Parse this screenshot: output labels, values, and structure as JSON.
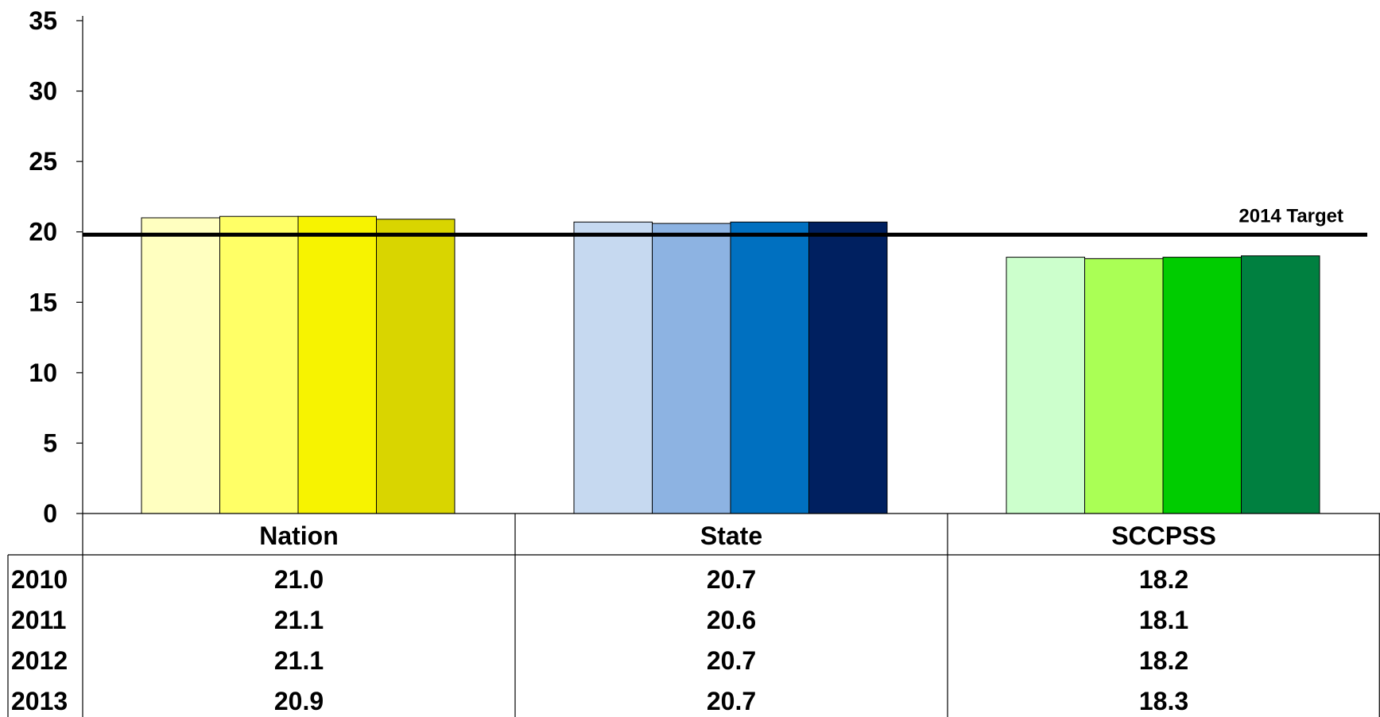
{
  "chart_data": {
    "type": "bar",
    "categories": [
      "Nation",
      "State",
      "SCCPSS"
    ],
    "series": [
      {
        "name": "2010",
        "values": [
          21.0,
          20.7,
          18.2
        ]
      },
      {
        "name": "2011",
        "values": [
          21.1,
          20.6,
          18.1
        ]
      },
      {
        "name": "2012",
        "values": [
          21.1,
          20.7,
          18.2
        ]
      },
      {
        "name": "2013",
        "values": [
          20.9,
          20.7,
          18.3
        ]
      }
    ],
    "value_labels": [
      [
        "21.0",
        "20.7",
        "18.2"
      ],
      [
        "21.1",
        "20.6",
        "18.1"
      ],
      [
        "21.1",
        "20.7",
        "18.2"
      ],
      [
        "20.9",
        "20.7",
        "18.3"
      ]
    ],
    "colors": [
      [
        "#FFFFC0",
        "#FFFF66",
        "#F7F300",
        "#D9D500"
      ],
      [
        "#C6D9F0",
        "#8DB3E2",
        "#0070C0",
        "#002060"
      ],
      [
        "#CCFFCC",
        "#AAFF55",
        "#00CC00",
        "#008040"
      ]
    ],
    "reference_line": {
      "label": "2014 Target",
      "value": 19.8
    },
    "yticks": [
      "0",
      "5",
      "10",
      "15",
      "20",
      "25",
      "30",
      "35"
    ],
    "ylim": [
      0,
      35
    ],
    "grid": false,
    "legend": "data-table-below"
  }
}
